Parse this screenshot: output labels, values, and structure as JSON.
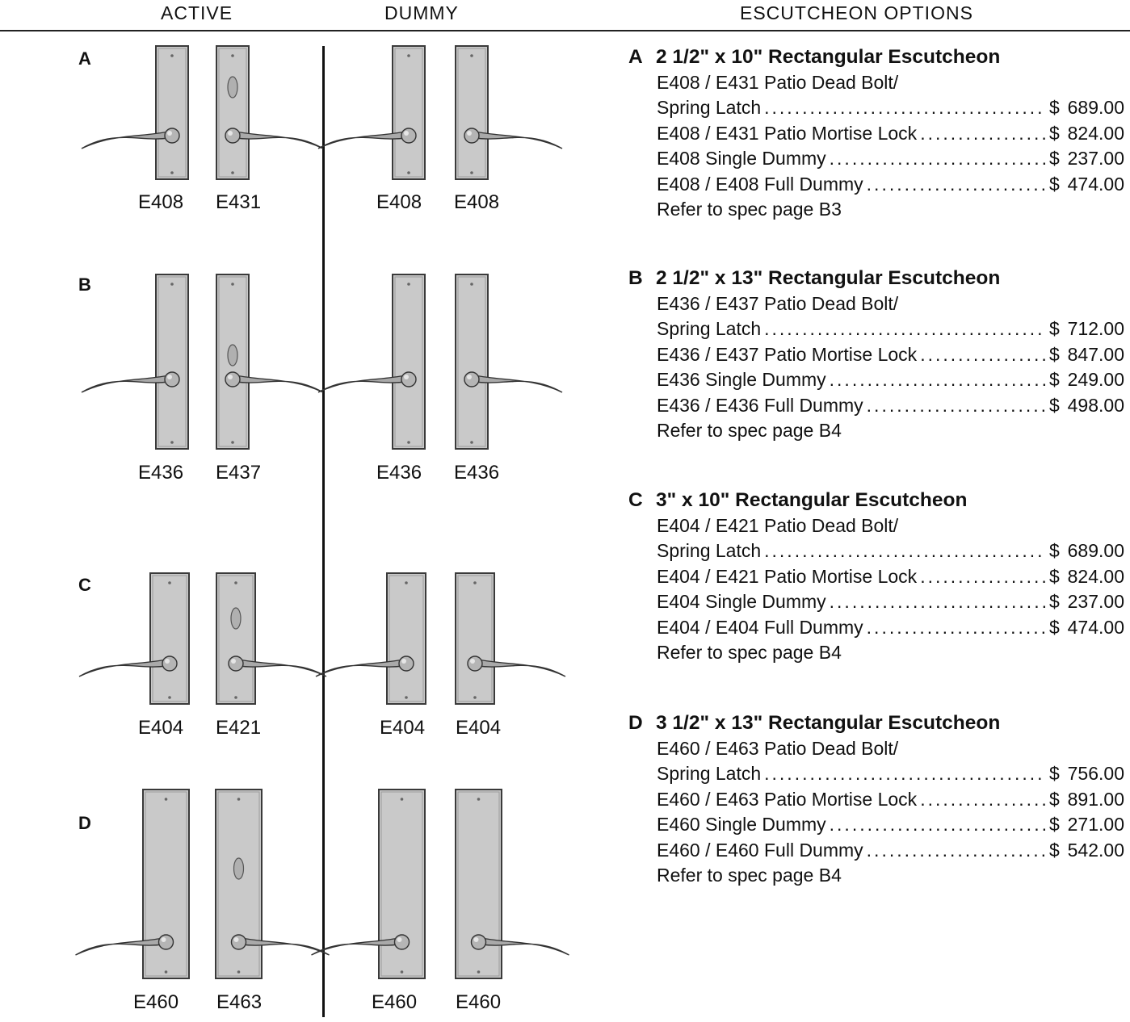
{
  "headers": {
    "active": "ACTIVE",
    "dummy": "DUMMY",
    "options": "ESCUTCHEON OPTIONS"
  },
  "rows": [
    {
      "letter": "A",
      "codes": [
        "E408",
        "E431",
        "E408",
        "E408"
      ]
    },
    {
      "letter": "B",
      "codes": [
        "E436",
        "E437",
        "E436",
        "E436"
      ]
    },
    {
      "letter": "C",
      "codes": [
        "E404",
        "E421",
        "E404",
        "E404"
      ]
    },
    {
      "letter": "D",
      "codes": [
        "E460",
        "E463",
        "E460",
        "E460"
      ]
    }
  ],
  "options": [
    {
      "letter": "A",
      "title": "2 1/2\" x 10\" Rectangular Escutcheon",
      "subtitle": "E408 / E431 Patio Dead Bolt/",
      "items": [
        {
          "label": "Spring Latch",
          "currency": "$",
          "price": "689.00"
        },
        {
          "label": "E408 / E431 Patio Mortise Lock",
          "currency": "$",
          "price": "824.00"
        },
        {
          "label": "E408 Single Dummy",
          "currency": "$",
          "price": "237.00"
        },
        {
          "label": "E408 / E408 Full Dummy",
          "currency": "$",
          "price": "474.00"
        }
      ],
      "ref": "Refer to spec page B3"
    },
    {
      "letter": "B",
      "title": "2 1/2\" x 13\" Rectangular Escutcheon",
      "subtitle": "E436 / E437 Patio Dead Bolt/",
      "items": [
        {
          "label": "Spring Latch",
          "currency": "$",
          "price": "712.00"
        },
        {
          "label": "E436 / E437 Patio Mortise Lock",
          "currency": "$",
          "price": "847.00"
        },
        {
          "label": "E436 Single Dummy",
          "currency": "$",
          "price": "249.00"
        },
        {
          "label": "E436 / E436 Full Dummy",
          "currency": "$",
          "price": "498.00"
        }
      ],
      "ref": "Refer to spec page B4"
    },
    {
      "letter": "C",
      "title": "3\" x 10\" Rectangular Escutcheon",
      "subtitle": "E404 / E421 Patio Dead Bolt/",
      "items": [
        {
          "label": "Spring Latch",
          "currency": "$",
          "price": "689.00"
        },
        {
          "label": "E404 / E421 Patio Mortise Lock",
          "currency": "$",
          "price": "824.00"
        },
        {
          "label": "E404 Single Dummy",
          "currency": "$",
          "price": "237.00"
        },
        {
          "label": "E404 / E404 Full Dummy",
          "currency": "$",
          "price": "474.00"
        }
      ],
      "ref": "Refer to spec page B4"
    },
    {
      "letter": "D",
      "title": "3 1/2\" x 13\" Rectangular Escutcheon",
      "subtitle": "E460 / E463 Patio Dead Bolt/",
      "items": [
        {
          "label": "Spring Latch",
          "currency": "$",
          "price": "756.00"
        },
        {
          "label": "E460 / E463 Patio Mortise Lock",
          "currency": "$",
          "price": "891.00"
        },
        {
          "label": "E460 Single Dummy",
          "currency": "$",
          "price": "271.00"
        },
        {
          "label": "E460 / E460 Full Dummy",
          "currency": "$",
          "price": "542.00"
        }
      ],
      "ref": "Refer to spec page B4"
    }
  ]
}
